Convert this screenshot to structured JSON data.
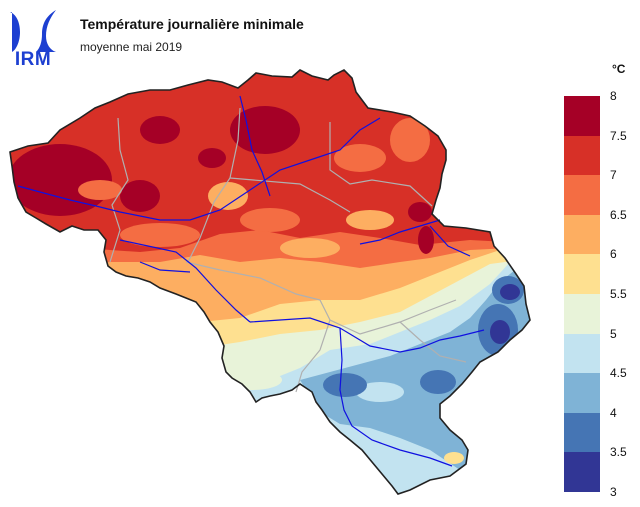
{
  "logo": {
    "text": "IRM",
    "color": "#1d3fd1"
  },
  "map_title": "Température journalière minimale",
  "map_subtitle": "moyenne mai 2019",
  "legend": {
    "unit": "°C",
    "bins": [
      {
        "label": "8",
        "color": "#a50026"
      },
      {
        "label": "7.5",
        "color": "#d73027"
      },
      {
        "label": "7",
        "color": "#f46d43"
      },
      {
        "label": "6.5",
        "color": "#fdae61"
      },
      {
        "label": "6",
        "color": "#fee090"
      },
      {
        "label": "5.5",
        "color": "#e8f3d9"
      },
      {
        "label": "5",
        "color": "#c2e3f0"
      },
      {
        "label": "4.5",
        "color": "#7fb3d6"
      },
      {
        "label": "4",
        "color": "#4575b4"
      },
      {
        "label": "3.5",
        "color": "#313695"
      },
      {
        "label": "3",
        "color": ""
      }
    ]
  },
  "colors": {
    "border": "#222222",
    "provinces": "#b0b0b0",
    "rivers": "#1010e0"
  }
}
